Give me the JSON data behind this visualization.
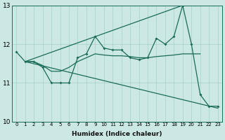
{
  "xlabel": "Humidex (Indice chaleur)",
  "xlim_left": -0.5,
  "xlim_right": 23.5,
  "ylim_bottom": 10,
  "ylim_top": 13,
  "yticks": [
    10,
    11,
    12,
    13
  ],
  "xticks": [
    0,
    1,
    2,
    3,
    4,
    5,
    6,
    7,
    8,
    9,
    10,
    11,
    12,
    13,
    14,
    15,
    16,
    17,
    18,
    19,
    20,
    21,
    22,
    23
  ],
  "bg_color": "#cce8e4",
  "line_color": "#1a6b5a",
  "line_width": 0.9,
  "marker": "D",
  "marker_size": 2.0,
  "curve_upper_env": {
    "x": [
      1,
      19
    ],
    "y": [
      11.55,
      13.0
    ]
  },
  "curve_lower_env": {
    "x": [
      1,
      23
    ],
    "y": [
      11.55,
      10.35
    ]
  },
  "curve_actual": {
    "x": [
      0,
      1,
      2,
      3,
      4,
      5,
      6,
      7,
      8,
      9,
      10,
      11,
      12,
      13,
      14,
      15,
      16,
      17,
      18,
      19,
      20,
      21,
      22,
      23
    ],
    "y": [
      11.8,
      11.55,
      11.55,
      11.4,
      11.0,
      11.0,
      11.0,
      11.65,
      11.75,
      12.2,
      11.9,
      11.85,
      11.85,
      11.65,
      11.6,
      11.65,
      12.15,
      12.0,
      12.2,
      13.0,
      12.0,
      10.7,
      10.4,
      10.4
    ]
  },
  "curve_mean": {
    "x": [
      1,
      2,
      3,
      4,
      5,
      6,
      7,
      8,
      9,
      10,
      11,
      12,
      13,
      14,
      15,
      16,
      17,
      18,
      19,
      20,
      21
    ],
    "y": [
      11.55,
      11.55,
      11.45,
      11.3,
      11.3,
      11.4,
      11.55,
      11.65,
      11.75,
      11.72,
      11.7,
      11.7,
      11.68,
      11.65,
      11.65,
      11.68,
      11.7,
      11.72,
      11.75,
      11.75,
      11.75
    ]
  }
}
